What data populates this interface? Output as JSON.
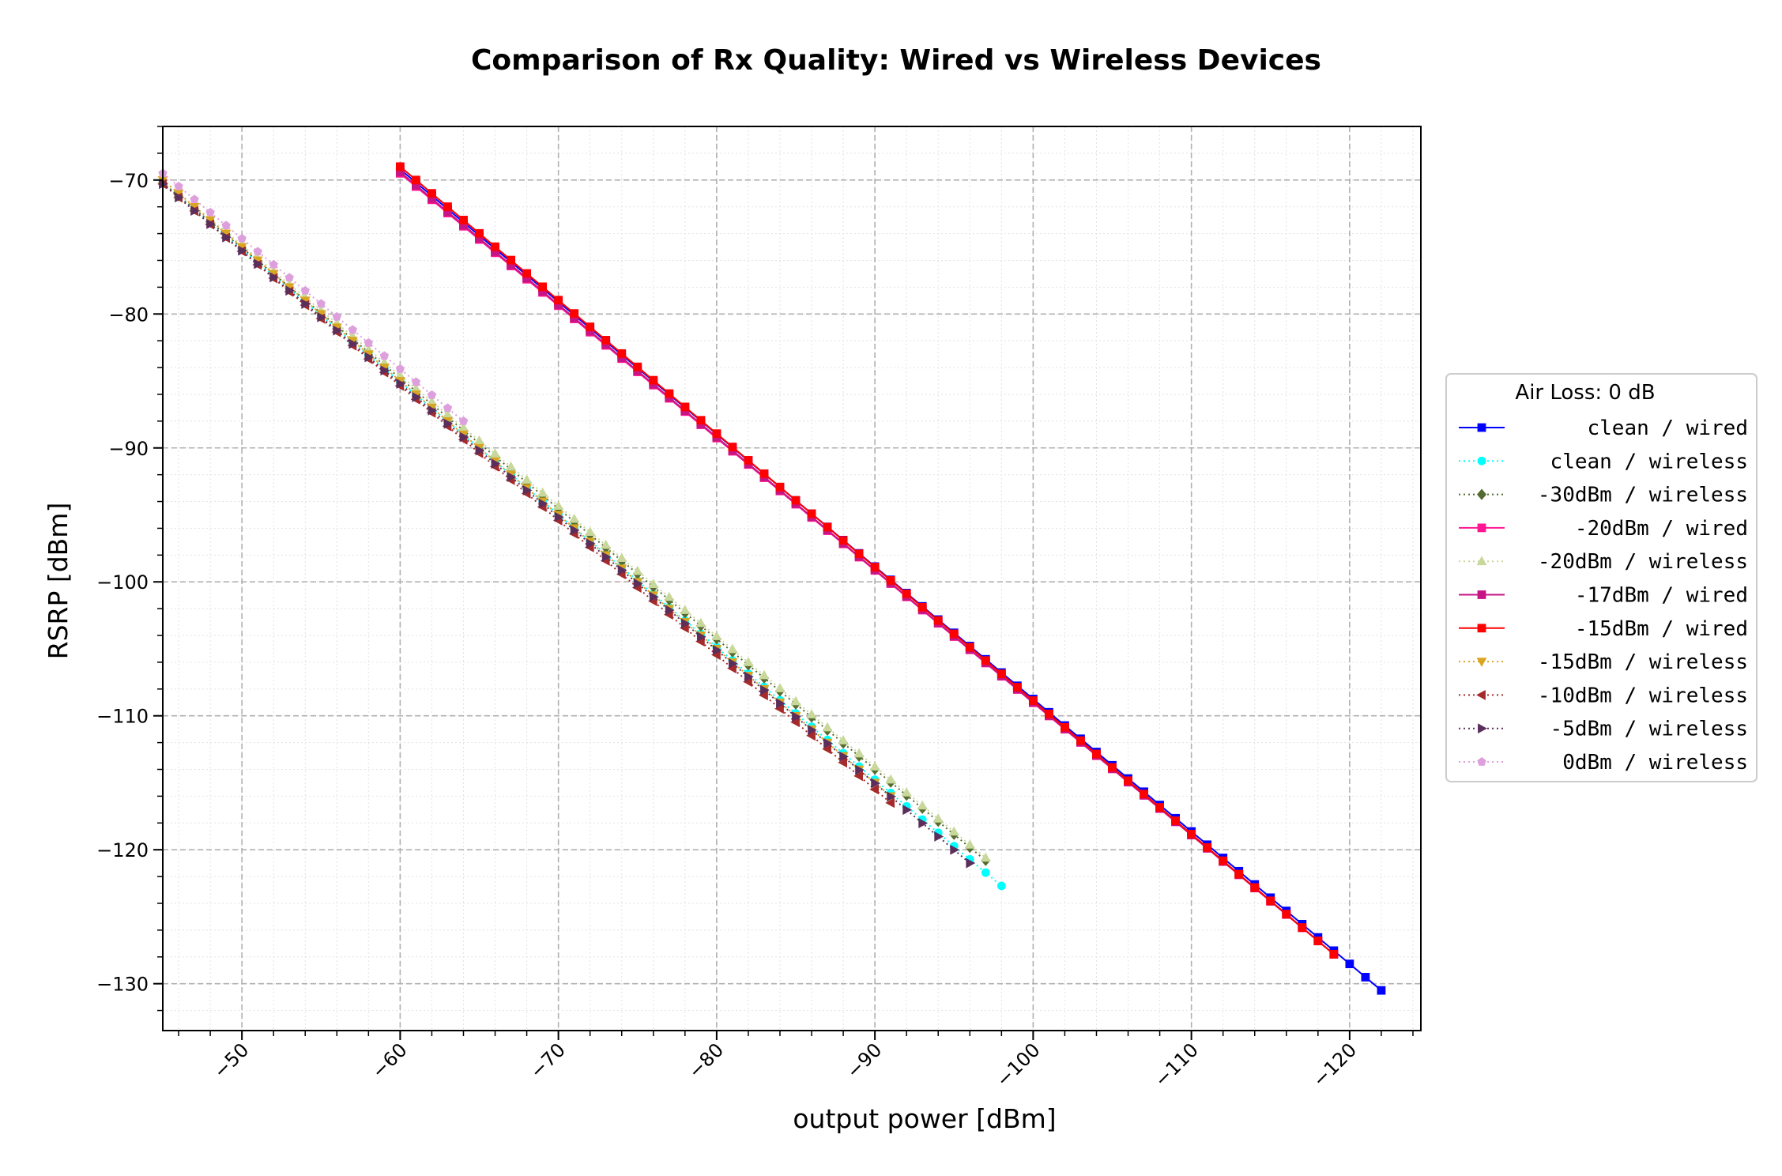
{
  "chart_data": {
    "type": "line",
    "title": "Comparison of Rx Quality: Wired vs Wireless Devices",
    "xlabel": "output power [dBm]",
    "ylabel": "RSRP [dBm]",
    "xlim": [
      -45,
      -124.5
    ],
    "ylim": [
      -133.5,
      -66
    ],
    "x_inverted": true,
    "xticks": [
      -50,
      -60,
      -70,
      -80,
      -90,
      -100,
      -110,
      -120
    ],
    "xtick_labels": [
      "−50",
      "−60",
      "−70",
      "−80",
      "−90",
      "−100",
      "−110",
      "−120"
    ],
    "yticks": [
      -70,
      -80,
      -90,
      -100,
      -110,
      -120,
      -130
    ],
    "ytick_labels": [
      "−70",
      "−80",
      "−90",
      "−100",
      "−110",
      "−120",
      "−130"
    ],
    "grid": true,
    "legend_title": "Air Loss: 0 dB",
    "legend_position": "right-outside",
    "series": [
      {
        "name": " clean / wired",
        "color": "#0000ff",
        "linestyle": "solid",
        "marker": "square",
        "x_start": -60,
        "x_end": -122,
        "y_start": -69.2,
        "y_end": -130.5
      },
      {
        "name": " clean / wireless",
        "color": "#00ffff",
        "linestyle": "dotted",
        "marker": "circle",
        "x_start": -45,
        "x_end": -98,
        "y_start": -70.2,
        "y_end": -122.7
      },
      {
        "name": "-30dBm / wireless",
        "color": "#556b2f",
        "linestyle": "dotted",
        "marker": "diamond",
        "x_start": -45,
        "x_end": -97,
        "y_start": -70.2,
        "y_end": -120.8
      },
      {
        "name": "-20dBm / wired",
        "color": "#ff1493",
        "linestyle": "solid",
        "marker": "square",
        "x_start": -60,
        "x_end": -119,
        "y_start": -69.5,
        "y_end": -127.8
      },
      {
        "name": "-20dBm / wireless",
        "color": "#c8d89a",
        "linestyle": "dotted",
        "marker": "triangle-up",
        "x_start": -45,
        "x_end": -97,
        "y_start": -70.0,
        "y_end": -120.6
      },
      {
        "name": "-17dBm / wired",
        "color": "#c71585",
        "linestyle": "solid",
        "marker": "square",
        "x_start": -60,
        "x_end": -119,
        "y_start": -69.4,
        "y_end": -127.8
      },
      {
        "name": "-15dBm / wired",
        "color": "#ff0000",
        "linestyle": "solid",
        "marker": "square",
        "x_start": -60,
        "x_end": -119,
        "y_start": -69.0,
        "y_end": -127.8
      },
      {
        "name": "-15dBm / wireless",
        "color": "#daa520",
        "linestyle": "dotted",
        "marker": "triangle-down",
        "x_start": -45,
        "x_end": -91,
        "y_start": -70.0,
        "y_end": -116.0
      },
      {
        "name": "-10dBm / wireless",
        "color": "#a52a2a",
        "linestyle": "dotted",
        "marker": "triangle-left",
        "x_start": -45,
        "x_end": -91,
        "y_start": -70.3,
        "y_end": -116.5
      },
      {
        "name": " -5dBm / wireless",
        "color": "#5c2e5c",
        "linestyle": "dotted",
        "marker": "triangle-right",
        "x_start": -45,
        "x_end": -96,
        "y_start": -70.3,
        "y_end": -121.0
      },
      {
        "name": "  0dBm / wireless",
        "color": "#dda0dd",
        "linestyle": "dotted",
        "marker": "pentagon",
        "x_start": -45,
        "x_end": -64,
        "y_start": -69.5,
        "y_end": -88.0
      }
    ]
  }
}
